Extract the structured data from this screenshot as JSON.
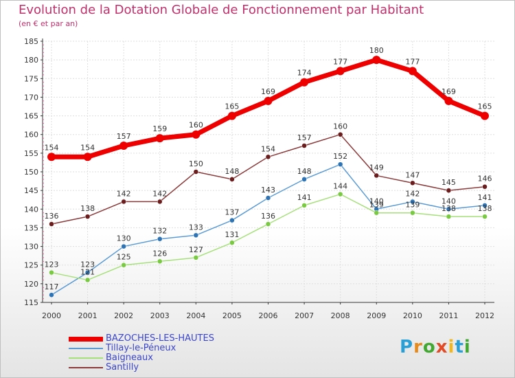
{
  "title": "Evolution de la Dotation Globale de Fonctionnement par Habitant",
  "subtitle": "(en € et par an)",
  "logo": {
    "letters": [
      "P",
      "r",
      "o",
      "x",
      "i",
      "t",
      "i"
    ],
    "colors": [
      "#2a9fd6",
      "#e8891c",
      "#43a832",
      "#e34a26",
      "#f2b71c",
      "#2a9fd6",
      "#43a832"
    ]
  },
  "chart_data": {
    "type": "line",
    "title": "Evolution de la Dotation Globale de Fonctionnement par Habitant",
    "subtitle": "(en € et par an)",
    "xlabel": "",
    "ylabel": "",
    "categories": [
      "2000",
      "2001",
      "2002",
      "2003",
      "2004",
      "2005",
      "2006",
      "2007",
      "2008",
      "2009",
      "2010",
      "2011",
      "2012"
    ],
    "ylim": [
      115,
      185
    ],
    "yticks": [
      115,
      120,
      125,
      130,
      135,
      140,
      145,
      150,
      155,
      160,
      165,
      170,
      175,
      180,
      185
    ],
    "grid": true,
    "legend_position": "bottom-left",
    "series": [
      {
        "name": "BAZOCHES-LES-HAUTES",
        "color": "#ee0000",
        "marker_color": "#ee0000",
        "values": [
          154,
          154,
          157,
          159,
          160,
          165,
          169,
          174,
          177,
          180,
          177,
          169,
          165
        ]
      },
      {
        "name": "Tillay-le-Péneux",
        "color": "#5b9bd5",
        "marker_color": "#2e74b5",
        "values": [
          117,
          123,
          130,
          132,
          133,
          137,
          143,
          148,
          152,
          140,
          142,
          140,
          141
        ]
      },
      {
        "name": "Baigneaux",
        "color": "#a6e07a",
        "marker_color": "#7ac943",
        "values": [
          123,
          121,
          125,
          126,
          127,
          131,
          136,
          141,
          144,
          139,
          139,
          138,
          138
        ]
      },
      {
        "name": "Santilly",
        "color": "#8b3a3a",
        "marker_color": "#6b1c1c",
        "values": [
          136,
          138,
          142,
          142,
          150,
          148,
          154,
          157,
          160,
          149,
          147,
          145,
          146
        ]
      }
    ]
  }
}
